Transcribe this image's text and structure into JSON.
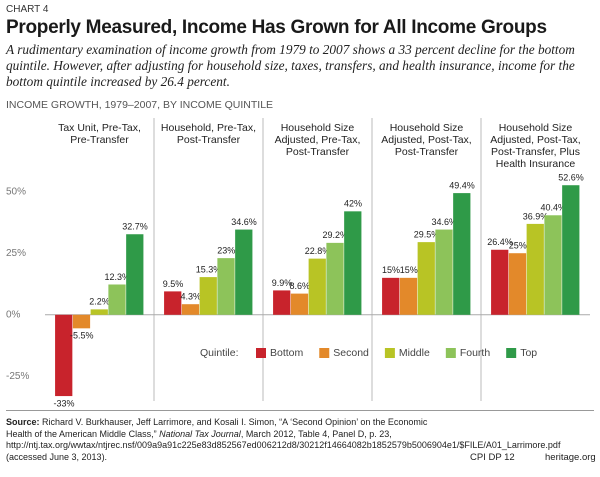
{
  "chart_data": {
    "type": "bar",
    "chart_label": "CHART 4",
    "title": "Properly Measured, Income Has Grown for All Income Groups",
    "subtitle": "A rudimentary examination of income growth from 1979 to 2007 shows a 33 percent decline for the bottom quintile. However, after adjusting for household size, taxes, transfers, and health insurance, income for the bottom quintile increased by 26.4 percent.",
    "section_label": "INCOME GROWTH, 1979–2007, BY INCOME QUINTILE",
    "categories": [
      [
        "Tax Unit, Pre-Tax,",
        "Pre-Transfer"
      ],
      [
        "Household, Pre-Tax,",
        "Post-Transfer"
      ],
      [
        "Household Size",
        "Adjusted, Pre-Tax,",
        "Post-Transfer"
      ],
      [
        "Household Size",
        "Adjusted, Post-Tax,",
        "Post-Transfer"
      ],
      [
        "Household Size",
        "Adjusted, Post-Tax,",
        "Post-Transfer, Plus",
        "Health Insurance"
      ]
    ],
    "legend_title": "Quintile:",
    "series": [
      {
        "name": "Bottom",
        "color": "#c8232c",
        "values": [
          -33,
          9.5,
          9.9,
          15,
          26.4
        ],
        "value_labels": [
          "-33%",
          "9.5%",
          "9.9%",
          "15%",
          "26.4%"
        ]
      },
      {
        "name": "Second",
        "color": "#e3892a",
        "values": [
          -5.5,
          4.3,
          8.6,
          15,
          25
        ],
        "value_labels": [
          "-5.5%",
          "4.3%",
          "8.6%",
          "15%",
          "25%"
        ]
      },
      {
        "name": "Middle",
        "color": "#b8c425",
        "values": [
          2.2,
          15.3,
          22.8,
          29.5,
          36.9
        ],
        "value_labels": [
          "2.2%",
          "15.3%",
          "22.8%",
          "29.5%",
          "36.9%"
        ]
      },
      {
        "name": "Fourth",
        "color": "#8dc35a",
        "values": [
          12.3,
          23,
          29.2,
          34.6,
          40.4
        ],
        "value_labels": [
          "12.3%",
          "23%",
          "29.2%",
          "34.6%",
          "40.4%"
        ]
      },
      {
        "name": "Top",
        "color": "#2f9a48",
        "values": [
          32.7,
          34.6,
          42,
          49.4,
          52.6
        ],
        "value_labels": [
          "32.7%",
          "34.6%",
          "42%",
          "49.4%",
          "52.6%"
        ]
      }
    ],
    "ylim": [
      -35,
      60
    ],
    "yticks": [
      {
        "value": -25,
        "label": "-25%"
      },
      {
        "value": 0,
        "label": "0%"
      },
      {
        "value": 25,
        "label": "25%"
      },
      {
        "value": 50,
        "label": "50%"
      }
    ],
    "zero_line": true,
    "source": {
      "label": "Source:",
      "text": "Richard V. Burkhauser, Jeff Larrimore, and Kosali I. Simon, “A ‘Second Opinion’ on the Economic Health of the American Middle Class,”",
      "journal": "National Tax Journal",
      "text2": ", March 2012, Table 4, Panel D, p. 23, http://ntj.tax.org/wwtax/ntjrec.nsf/009a9a91c225e83d852567ed006212d8/30212f14664082b1852579b5006904e1/$FILE/A01_Larrimore.pdf (accessed June 3, 2013)."
    },
    "code": "CPI DP 12",
    "site": "heritage.org"
  }
}
